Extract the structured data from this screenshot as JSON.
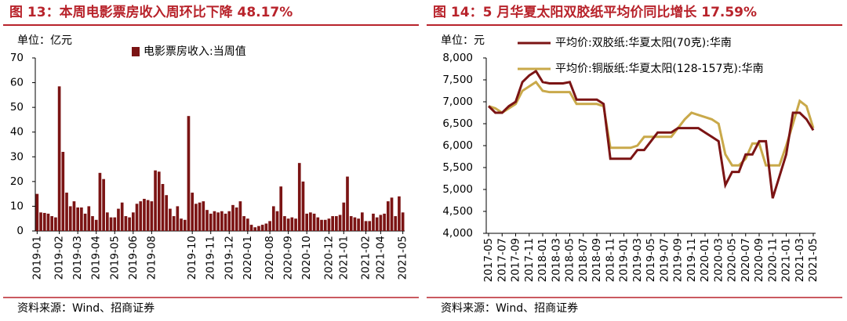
{
  "chart_data": [
    {
      "type": "bar",
      "title": "图 13：本周电影票房收入周环比下降 48.17%",
      "unit": "单位：亿元",
      "source": "资料来源：Wind、招商证券",
      "ylim": [
        0,
        70
      ],
      "yticks": [
        0,
        10,
        20,
        30,
        40,
        50,
        60,
        70
      ],
      "categories": [
        "2019-01",
        null,
        null,
        null,
        null,
        null,
        "2019-02",
        null,
        null,
        null,
        null,
        "2019-03",
        null,
        null,
        null,
        null,
        "2019-04",
        null,
        null,
        null,
        null,
        "2019-05",
        null,
        null,
        null,
        null,
        "2019-06",
        null,
        null,
        null,
        null,
        "2019-08",
        null,
        null,
        null,
        null,
        null,
        null,
        null,
        null,
        null,
        null,
        "2019-10",
        null,
        null,
        null,
        null,
        "2019-11",
        null,
        null,
        null,
        null,
        "2019-12",
        null,
        null,
        null,
        null,
        "2020-01",
        null,
        null,
        null,
        null,
        null,
        "2020-08",
        null,
        null,
        null,
        null,
        "2020-09",
        null,
        null,
        null,
        null,
        "2020-10",
        null,
        null,
        null,
        null,
        null,
        "2020-12",
        null,
        null,
        null,
        "2021-01",
        null,
        null,
        null,
        null,
        null,
        "2021-02",
        null,
        null,
        null,
        "2021-04",
        null,
        null,
        null,
        null,
        null,
        "2021-05"
      ],
      "series": [
        {
          "name": "电影票房收入:当周值",
          "color": "#7b1414",
          "values": [
            15,
            7.5,
            7.3,
            7,
            6,
            5.5,
            58.5,
            32,
            15.5,
            10,
            12,
            9.5,
            9.5,
            7,
            10,
            6,
            4.5,
            23.5,
            21,
            7.5,
            5.5,
            5.5,
            9,
            11.5,
            6,
            5.5,
            7.5,
            11,
            12,
            13,
            12.5,
            12,
            24.5,
            24,
            19,
            14.5,
            9,
            6,
            10,
            5,
            4.5,
            46.5,
            15.5,
            11,
            11.5,
            12,
            8.5,
            7,
            8,
            7.5,
            8,
            7,
            8,
            10.5,
            9.5,
            12,
            6,
            5,
            2.5,
            1.5,
            2,
            2.5,
            3,
            4,
            10,
            8,
            18,
            6,
            5,
            5.5,
            5,
            27.5,
            20,
            7,
            7.5,
            7,
            5.5,
            4.5,
            4.5,
            5,
            6,
            6,
            6.5,
            11.5,
            22,
            6,
            5.5,
            5,
            7.5,
            4,
            4,
            7,
            5.5,
            6.5,
            7,
            12,
            13.5,
            6,
            14,
            7.5
          ]
        }
      ]
    },
    {
      "type": "line",
      "title": "图 14：5 月华夏太阳双胶纸平均价同比增长 17.59%",
      "unit": "单位：元",
      "source": "资料来源：Wind、招商证券",
      "ylim": [
        4000,
        8000
      ],
      "yticks": [
        {
          "value": 4000,
          "label": "4,000"
        },
        {
          "value": 4500,
          "label": "4,500"
        },
        {
          "value": 5000,
          "label": "5,000"
        },
        {
          "value": 5500,
          "label": "5,500"
        },
        {
          "value": 6000,
          "label": "6,000"
        },
        {
          "value": 6500,
          "label": "6,500"
        },
        {
          "value": 7000,
          "label": "7,000"
        },
        {
          "value": 7500,
          "label": "7,500"
        },
        {
          "value": 8000,
          "label": "8,000"
        }
      ],
      "categories": [
        "2017-05",
        null,
        "2017-07",
        null,
        "2017-09",
        null,
        "2017-11",
        null,
        "2018-01",
        null,
        "2018-03",
        null,
        "2018-05",
        null,
        "2018-07",
        null,
        "2018-09",
        null,
        "2018-11",
        null,
        "2019-01",
        null,
        "2019-03",
        null,
        "2019-05",
        null,
        "2019-07",
        null,
        "2019-09",
        null,
        "2019-11",
        null,
        "2020-01",
        null,
        "2020-03",
        null,
        "2020-05",
        null,
        "2020-07",
        null,
        "2020-09",
        null,
        "2020-11",
        null,
        "2021-01",
        null,
        "2021-03",
        null,
        "2021-05"
      ],
      "series": [
        {
          "name": "平均价:双胶纸:华夏太阳(70克):华南",
          "color": "#7b1414",
          "values": [
            6900,
            6750,
            6750,
            6900,
            7000,
            7450,
            7600,
            7700,
            7450,
            7420,
            7420,
            7420,
            7450,
            7050,
            7050,
            7050,
            7050,
            6950,
            5700,
            5700,
            5700,
            5700,
            5900,
            5900,
            6100,
            6300,
            6300,
            6300,
            6400,
            6400,
            6400,
            6400,
            6300,
            6200,
            6100,
            5100,
            5400,
            5400,
            5800,
            5800,
            6100,
            6100,
            4800,
            5300,
            5800,
            6750,
            6750,
            6600,
            6350
          ]
        },
        {
          "name": "平均价:铜版纸:华夏太阳(128-157克):华南",
          "color": "#c9a94a",
          "values": [
            6900,
            6850,
            6750,
            6850,
            6950,
            7250,
            7350,
            7450,
            7250,
            7220,
            7220,
            7220,
            7220,
            6950,
            6950,
            6950,
            6950,
            6900,
            5950,
            5950,
            5950,
            5950,
            6000,
            6200,
            6200,
            6200,
            6200,
            6200,
            6400,
            6600,
            6750,
            6700,
            6650,
            6600,
            6500,
            5800,
            5550,
            5550,
            5700,
            6050,
            6050,
            5550,
            5550,
            5550,
            6000,
            6500,
            7020,
            6900,
            6400
          ]
        }
      ]
    }
  ]
}
